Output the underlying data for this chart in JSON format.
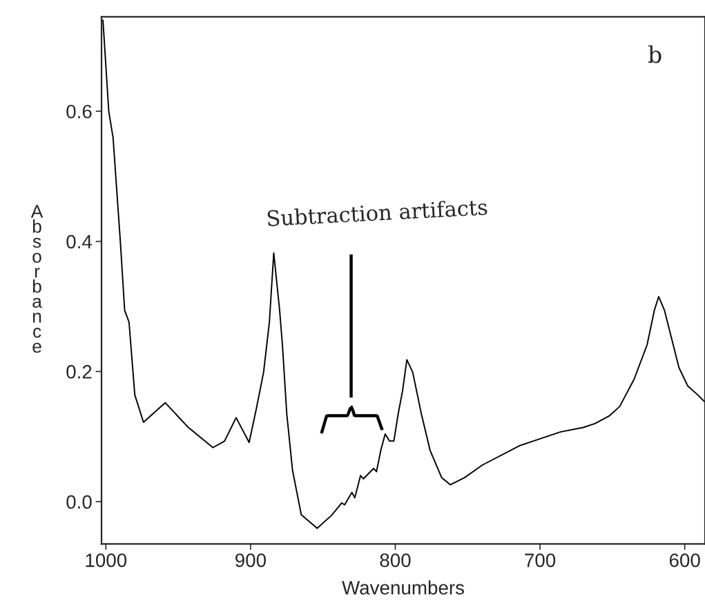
{
  "chart_data": {
    "type": "line",
    "xlabel": "Wavenumbers",
    "ylabel": "Absorbance",
    "annotations": [
      "Subtraction artifacts",
      "b"
    ],
    "xlim": [
      1003,
      586
    ],
    "ylim": [
      -0.065,
      0.745
    ],
    "xticks": [
      1000,
      900,
      800,
      700,
      600
    ],
    "yticks": [
      {
        "value": 0,
        "label": "0.0"
      },
      0.2,
      0.4,
      0.6
    ],
    "grid": false,
    "legend": false,
    "marker": "none",
    "line_style": "solid",
    "series": [
      {
        "color": "#000000",
        "x": [
          1002,
          998,
          995,
          990,
          987,
          984,
          980,
          974,
          959,
          943,
          926,
          918,
          910,
          901,
          896,
          891,
          887,
          884,
          880,
          878,
          875,
          871,
          865,
          854,
          844,
          837,
          835,
          830,
          828,
          824,
          822,
          815,
          813,
          810,
          807,
          804,
          801,
          798,
          795,
          792,
          788,
          782,
          776,
          768,
          762,
          752,
          740,
          714,
          686,
          670,
          662,
          652,
          645,
          635,
          626,
          621,
          618,
          614,
          604,
          598,
          591,
          586
        ],
        "values": [
          0.74,
          0.6,
          0.559,
          0.4,
          0.294,
          0.276,
          0.164,
          0.122,
          0.152,
          0.114,
          0.083,
          0.093,
          0.129,
          0.091,
          0.143,
          0.199,
          0.276,
          0.382,
          0.296,
          0.241,
          0.135,
          0.048,
          -0.02,
          -0.041,
          -0.021,
          -0.002,
          -0.005,
          0.014,
          0.006,
          0.04,
          0.035,
          0.051,
          0.046,
          0.079,
          0.104,
          0.093,
          0.093,
          0.135,
          0.17,
          0.218,
          0.199,
          0.135,
          0.079,
          0.037,
          0.026,
          0.037,
          0.056,
          0.086,
          0.107,
          0.114,
          0.12,
          0.132,
          0.146,
          0.188,
          0.241,
          0.294,
          0.315,
          0.294,
          0.206,
          0.178,
          0.164,
          0.153
        ]
      }
    ]
  }
}
